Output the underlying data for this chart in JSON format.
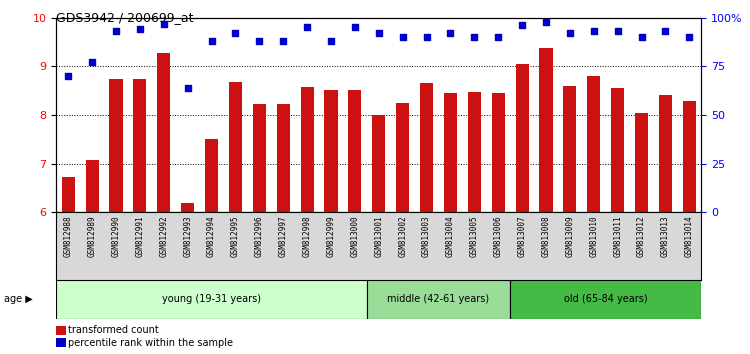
{
  "title": "GDS3942 / 200699_at",
  "samples": [
    "GSM812988",
    "GSM812989",
    "GSM812990",
    "GSM812991",
    "GSM812992",
    "GSM812993",
    "GSM812994",
    "GSM812995",
    "GSM812996",
    "GSM812997",
    "GSM812998",
    "GSM812999",
    "GSM813000",
    "GSM813001",
    "GSM813002",
    "GSM813003",
    "GSM813004",
    "GSM813005",
    "GSM813006",
    "GSM813007",
    "GSM813008",
    "GSM813009",
    "GSM813010",
    "GSM813011",
    "GSM813012",
    "GSM813013",
    "GSM813014"
  ],
  "bar_values": [
    6.72,
    7.08,
    8.75,
    8.75,
    9.28,
    6.2,
    7.5,
    8.68,
    8.22,
    8.22,
    8.58,
    8.52,
    8.52,
    8.0,
    8.25,
    8.65,
    8.45,
    8.48,
    8.45,
    9.05,
    9.38,
    8.6,
    8.8,
    8.55,
    8.05,
    8.42,
    8.28
  ],
  "dot_values_pct": [
    70,
    77,
    93,
    94,
    97,
    64,
    88,
    92,
    88,
    88,
    95,
    88,
    95,
    92,
    90,
    90,
    92,
    90,
    90,
    96,
    98,
    92,
    93,
    93,
    90,
    93,
    90
  ],
  "groups": [
    {
      "label": "young (19-31 years)",
      "start": 0,
      "end": 13,
      "color": "#ccffcc"
    },
    {
      "label": "middle (42-61 years)",
      "start": 13,
      "end": 19,
      "color": "#99dd99"
    },
    {
      "label": "old (65-84 years)",
      "start": 19,
      "end": 27,
      "color": "#44bb44"
    }
  ],
  "ylim_left": [
    6,
    10
  ],
  "ylim_right": [
    0,
    100
  ],
  "yticks_left": [
    6,
    7,
    8,
    9,
    10
  ],
  "yticks_right": [
    0,
    25,
    50,
    75,
    100
  ],
  "ytick_labels_right": [
    "0",
    "25",
    "50",
    "75",
    "100%"
  ],
  "bar_color": "#cc1111",
  "dot_color": "#0000cc",
  "background_color": "#ffffff",
  "plot_bg_color": "#ffffff",
  "tick_label_bg": "#d8d8d8"
}
